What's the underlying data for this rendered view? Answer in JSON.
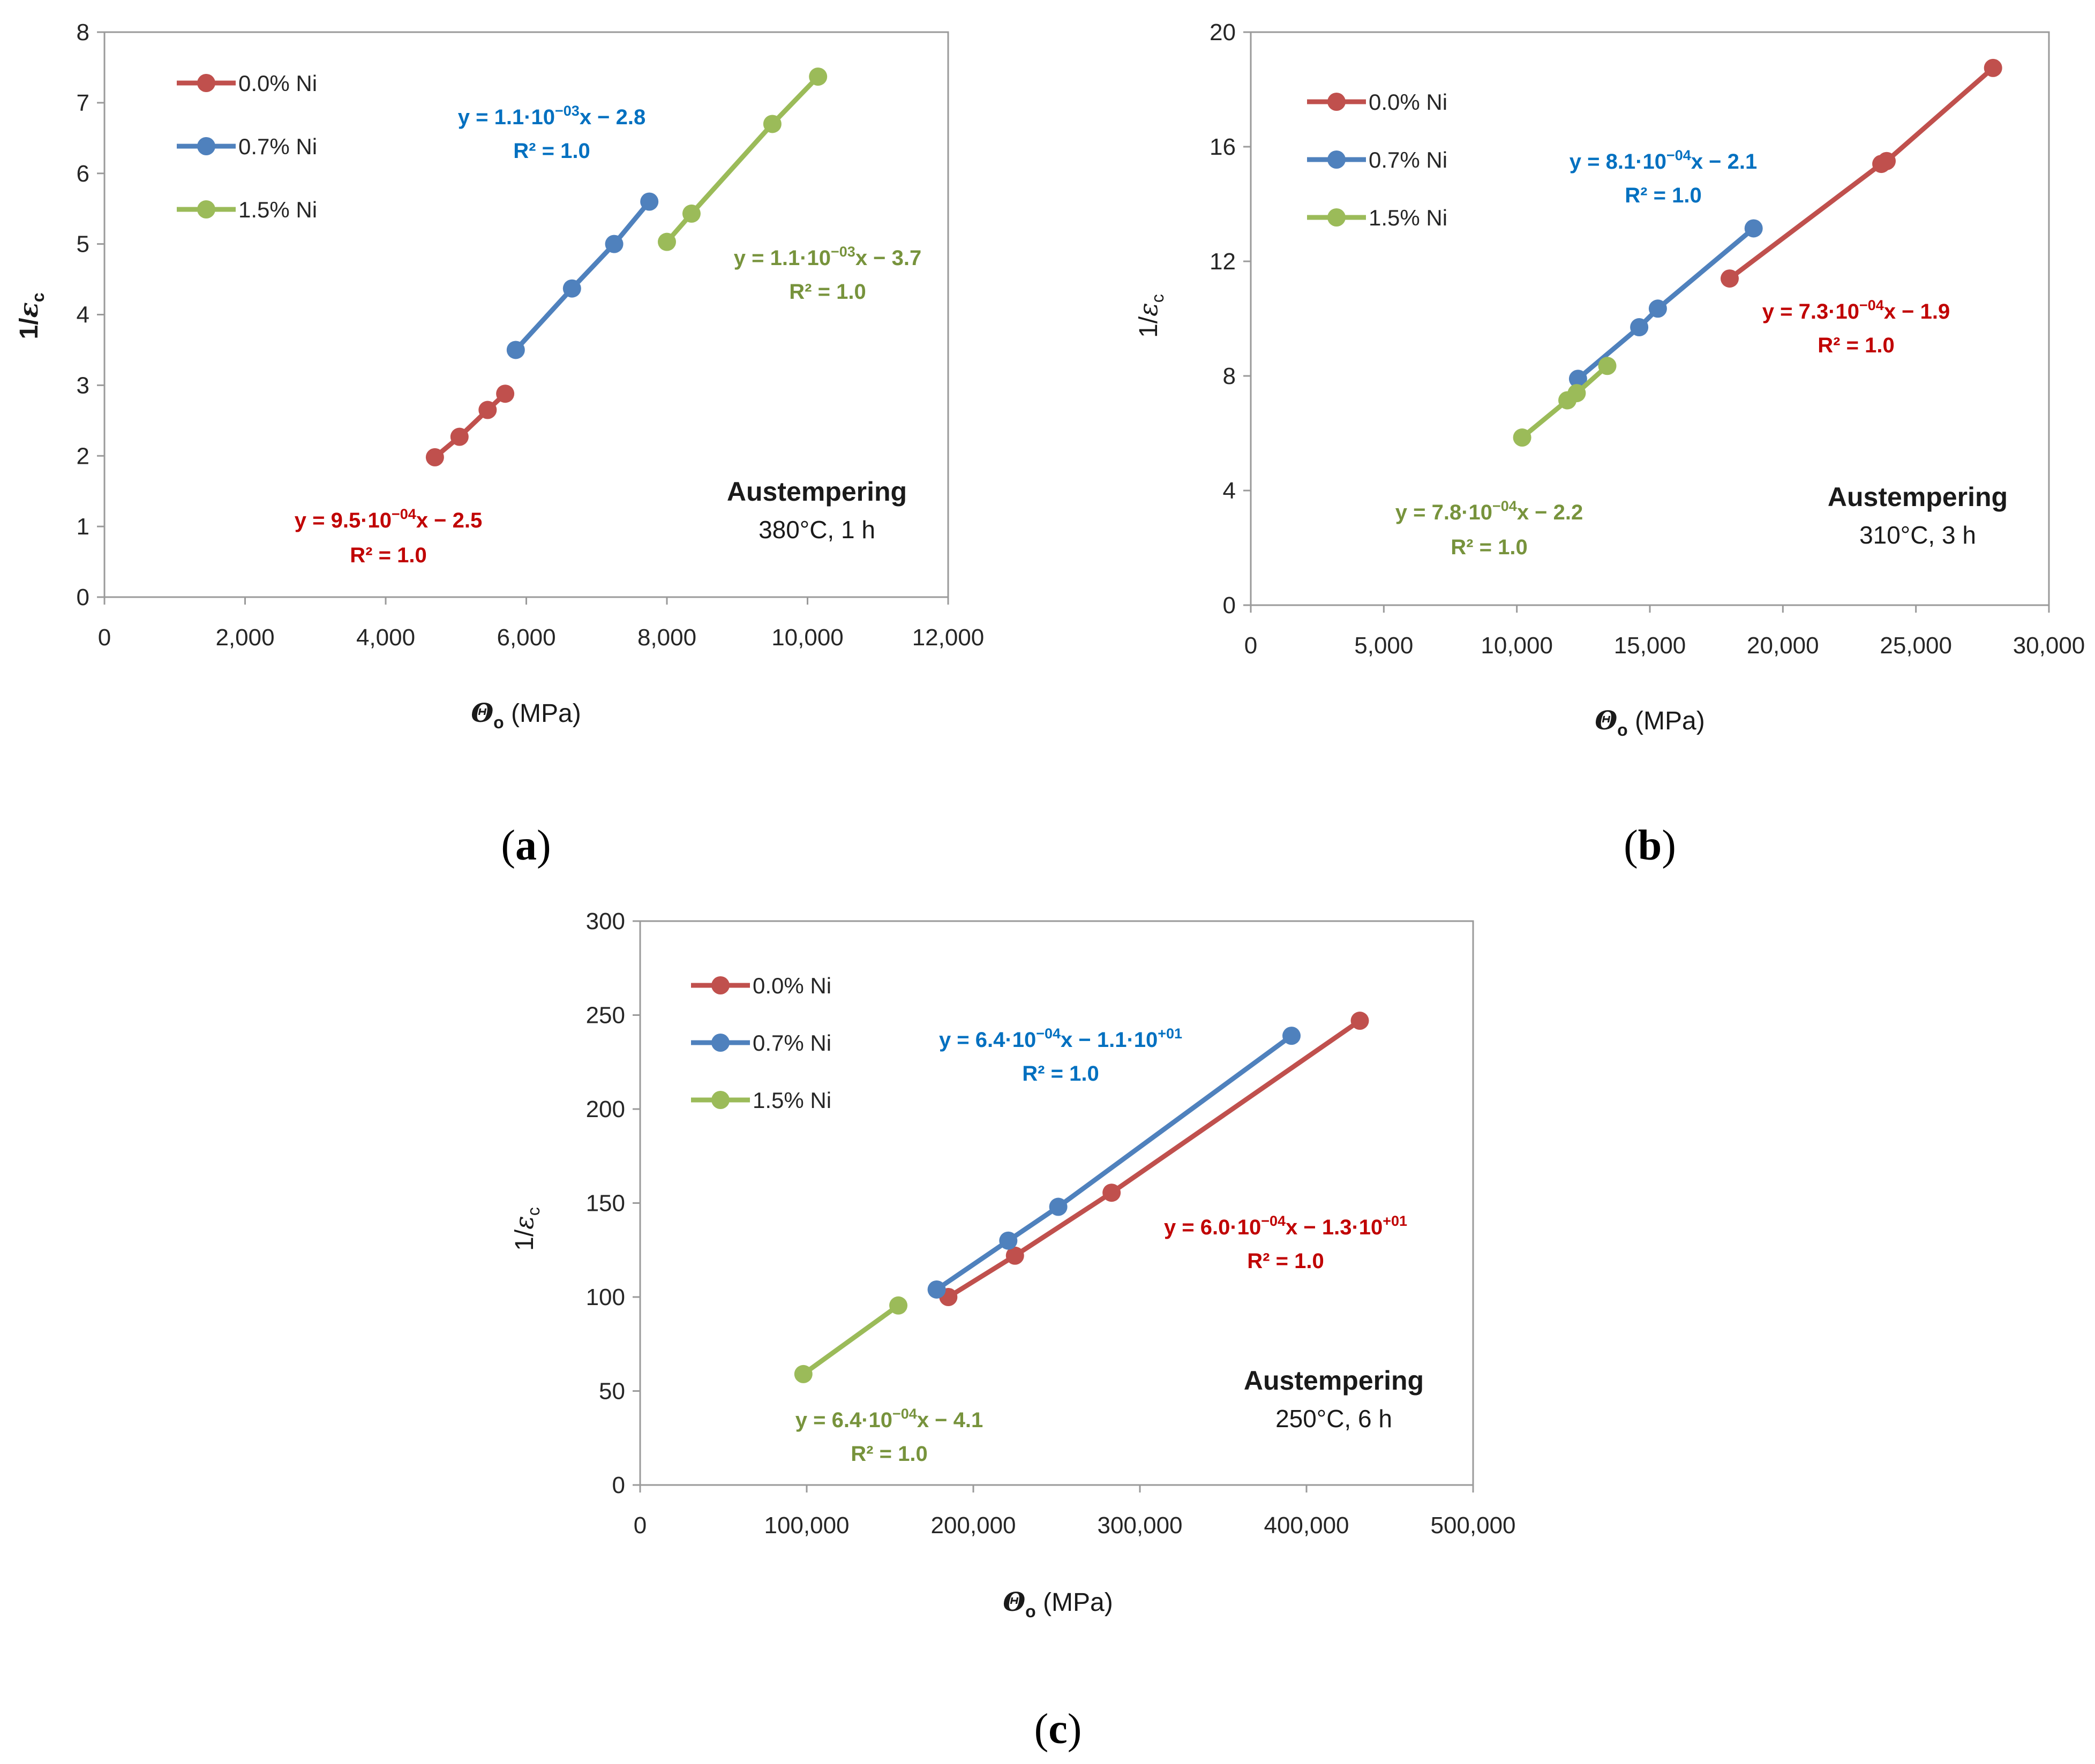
{
  "colors": {
    "red": "#C0504D",
    "blue": "#4F81BD",
    "green": "#9BBB59",
    "red_text": "#C00000",
    "blue_text": "#0070C0",
    "green_text": "#77933C"
  },
  "chart_data": [
    {
      "type": "scatter",
      "panel_label": "(a)",
      "xlabel": {
        "symbol": "Θ",
        "subscript": "o",
        "unit": "(MPa)"
      },
      "ylabel": {
        "symbol": "1/ε",
        "subscript": "c"
      },
      "xlim": [
        0,
        12000
      ],
      "ylim": [
        0,
        8
      ],
      "xticks": [
        0,
        2000,
        4000,
        6000,
        8000,
        10000,
        12000
      ],
      "xtick_labels": [
        "0",
        "2,000",
        "4,000",
        "6,000",
        "8,000",
        "10,000",
        "12,000"
      ],
      "yticks": [
        0,
        1,
        2,
        3,
        4,
        5,
        6,
        7,
        8
      ],
      "ytick_labels": [
        "0",
        "1",
        "2",
        "3",
        "4",
        "5",
        "6",
        "7",
        "8"
      ],
      "legend_position": "top-left",
      "series": [
        {
          "name": "0.0% Ni",
          "color": "red",
          "x": [
            4700,
            5050,
            5450,
            5700
          ],
          "y": [
            1.98,
            2.27,
            2.65,
            2.88
          ],
          "equation": {
            "pre": "y = 9.5·10",
            "sup": "−04",
            "post": "x − 2.5",
            "r2": "R² = 1.0"
          }
        },
        {
          "name": "0.7% Ni",
          "color": "blue",
          "x": [
            5850,
            6650,
            7250,
            7750
          ],
          "y": [
            3.5,
            4.37,
            5.0,
            5.6
          ],
          "equation": {
            "pre": "y = 1.1·10",
            "sup": "−03",
            "post": "x − 2.8",
            "r2": "R² = 1.0"
          }
        },
        {
          "name": "1.5% Ni",
          "color": "green",
          "x": [
            8000,
            8350,
            9500,
            10150
          ],
          "y": [
            5.03,
            5.43,
            6.7,
            7.37
          ],
          "equation": {
            "pre": "y = 1.1·10",
            "sup": "−03",
            "post": "x − 3.7",
            "r2": "R² = 1.0"
          }
        }
      ],
      "annotation": {
        "title": "Austempering",
        "subtitle": "380°C, 1 h"
      }
    },
    {
      "type": "scatter",
      "panel_label": "(b)",
      "xlabel": {
        "symbol": "Θ",
        "subscript": "o",
        "unit": "(MPa)"
      },
      "ylabel": {
        "symbol": "1/ε",
        "subscript": "c"
      },
      "xlim": [
        0,
        30000
      ],
      "ylim": [
        0,
        20
      ],
      "xticks": [
        0,
        5000,
        10000,
        15000,
        20000,
        25000,
        30000
      ],
      "xtick_labels": [
        "0",
        "5,000",
        "10,000",
        "15,000",
        "20,000",
        "25,000",
        "30,000"
      ],
      "yticks": [
        0,
        4,
        8,
        12,
        16,
        20
      ],
      "ytick_labels": [
        "0",
        "4",
        "8",
        "12",
        "16",
        "20"
      ],
      "legend_position": "top-left",
      "series": [
        {
          "name": "0.0% Ni",
          "color": "red",
          "x": [
            18000,
            23700,
            23900,
            27900
          ],
          "y": [
            11.4,
            15.4,
            15.5,
            18.75
          ],
          "equation": {
            "pre": "y = 7.3·10",
            "sup": "−04",
            "post": "x − 1.9",
            "r2": "R² = 1.0"
          }
        },
        {
          "name": "0.7% Ni",
          "color": "blue",
          "x": [
            12300,
            14600,
            15300,
            18900
          ],
          "y": [
            7.9,
            9.7,
            10.35,
            13.15
          ],
          "equation": {
            "pre": "y = 8.1·10",
            "sup": "−04",
            "post": "x − 2.1",
            "r2": "R² = 1.0"
          }
        },
        {
          "name": "1.5% Ni",
          "color": "green",
          "x": [
            10200,
            11900,
            12250,
            13400
          ],
          "y": [
            5.85,
            7.15,
            7.4,
            8.35
          ],
          "equation": {
            "pre": "y = 7.8·10",
            "sup": "−04",
            "post": "x − 2.2",
            "r2": "R² = 1.0"
          }
        }
      ],
      "annotation": {
        "title": "Austempering",
        "subtitle": "310°C, 3 h"
      }
    },
    {
      "type": "scatter",
      "panel_label": "(c)",
      "xlabel": {
        "symbol": "Θ",
        "subscript": "o",
        "unit": "(MPa)"
      },
      "ylabel": {
        "symbol": "1/ε",
        "subscript": "c"
      },
      "xlim": [
        0,
        500000
      ],
      "ylim": [
        0,
        300
      ],
      "xticks": [
        0,
        100000,
        200000,
        300000,
        400000,
        500000
      ],
      "xtick_labels": [
        "0",
        "100,000",
        "200,000",
        "300,000",
        "400,000",
        "500,000"
      ],
      "yticks": [
        0,
        50,
        100,
        150,
        200,
        250,
        300
      ],
      "ytick_labels": [
        "0",
        "50",
        "100",
        "150",
        "200",
        "250",
        "300"
      ],
      "legend_position": "top-left",
      "series": [
        {
          "name": "0.0% Ni",
          "color": "red",
          "x": [
            185000,
            225000,
            283000,
            432000
          ],
          "y": [
            100,
            122,
            155.5,
            247
          ],
          "equation": {
            "pre": "y = 6.0·10",
            "sup": "−04",
            "post": "x − 1.3·10",
            "post_sup": "+01",
            "r2": "R² = 1.0"
          }
        },
        {
          "name": "0.7% Ni",
          "color": "blue",
          "x": [
            178000,
            221000,
            251000,
            391000
          ],
          "y": [
            104,
            130,
            148,
            239
          ],
          "equation": {
            "pre": "y = 6.4·10",
            "sup": "−04",
            "post": "x − 1.1·10",
            "post_sup": "+01",
            "r2": "R² = 1.0"
          }
        },
        {
          "name": "1.5% Ni",
          "color": "green",
          "x": [
            98000,
            155000
          ],
          "y": [
            59,
            95.5
          ],
          "equation": {
            "pre": "y = 6.4·10",
            "sup": "−04",
            "post": "x − 4.1",
            "r2": "R² = 1.0"
          }
        }
      ],
      "annotation": {
        "title": "Austempering",
        "subtitle": "250°C, 6 h"
      }
    }
  ]
}
